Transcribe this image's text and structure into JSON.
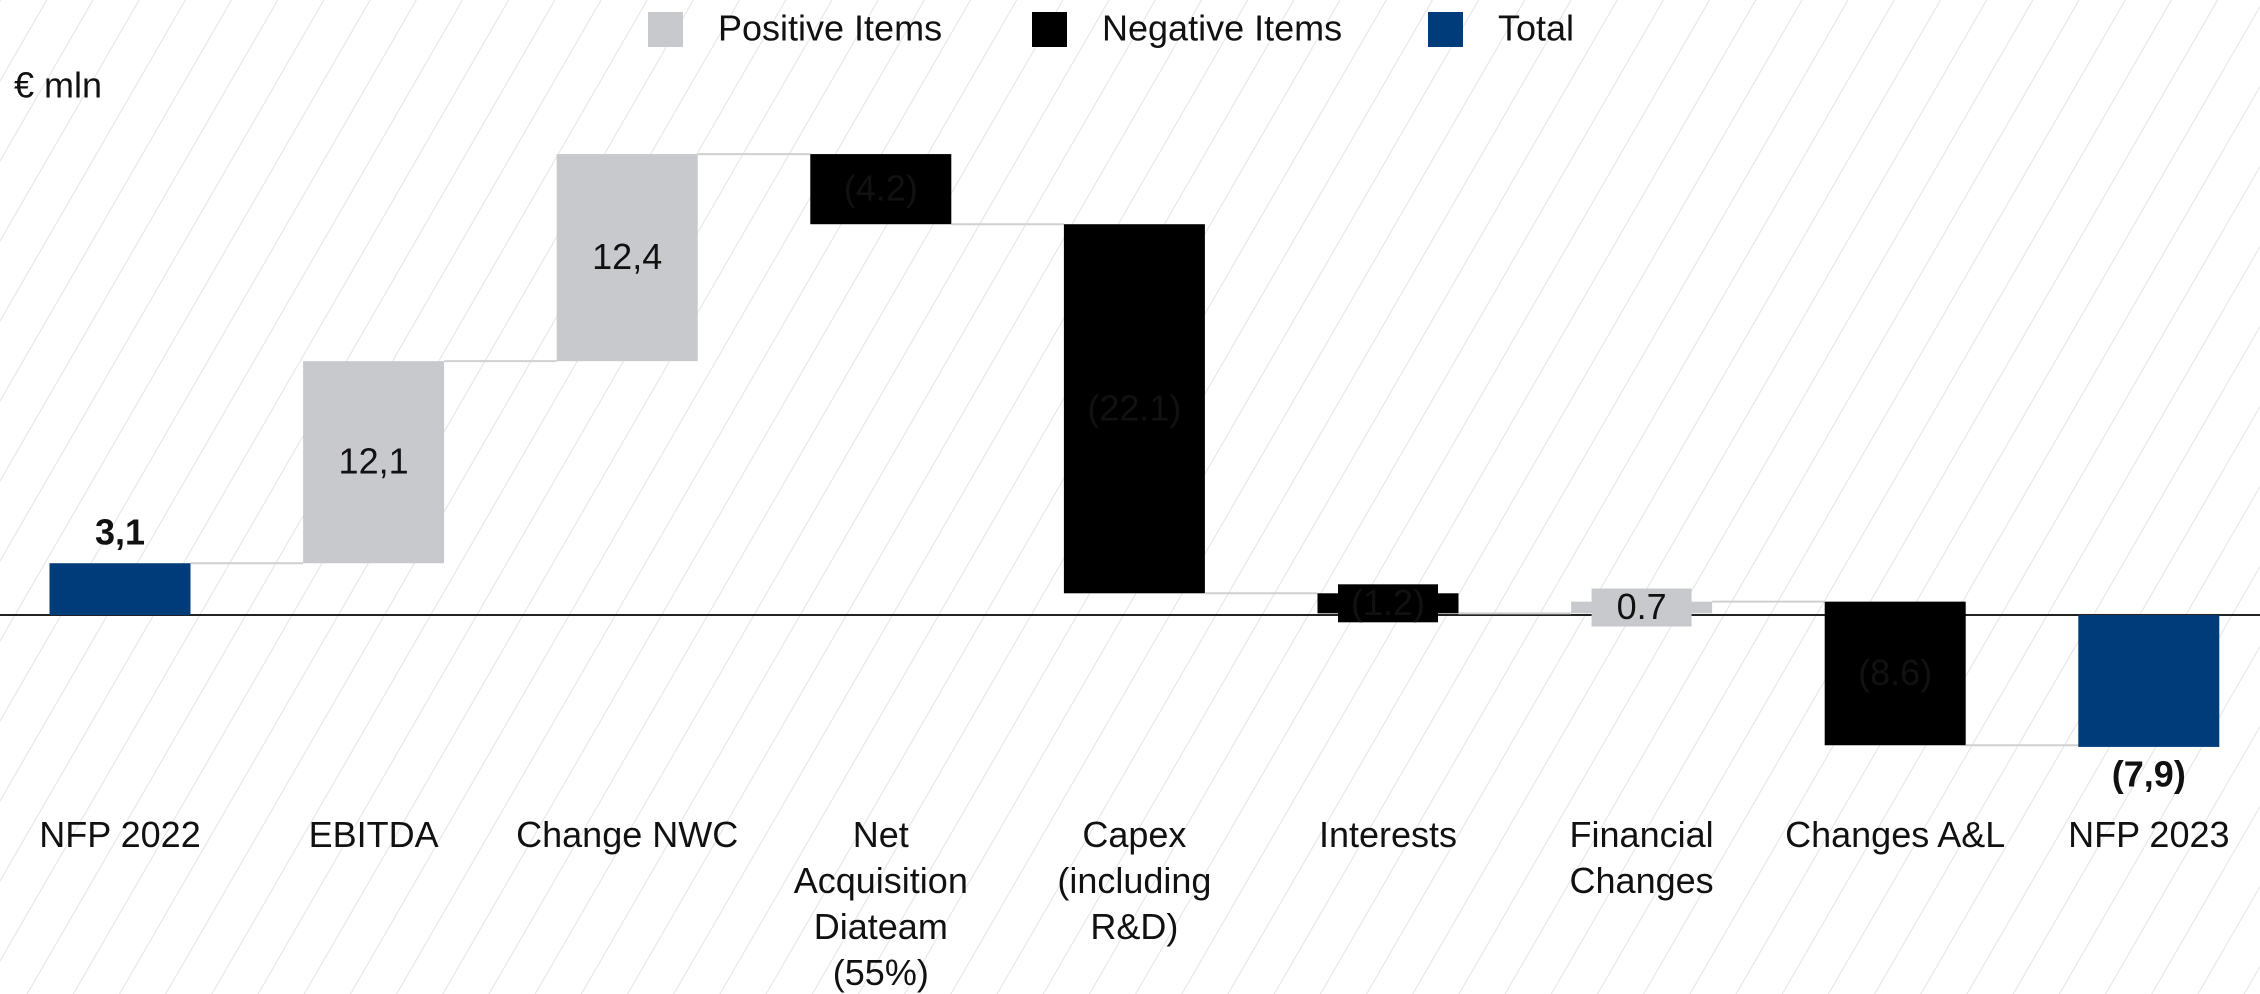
{
  "chart_data": {
    "type": "waterfall",
    "unit_label": "€ mln",
    "categories": [
      [
        "NFP 2022"
      ],
      [
        "EBITDA"
      ],
      [
        "Change NWC"
      ],
      [
        "Net",
        "Acquisition",
        "Diateam",
        "(55%)"
      ],
      [
        "Capex",
        "(including",
        "R&D)"
      ],
      [
        "Interests"
      ],
      [
        "Financial",
        "Changes"
      ],
      [
        "Changes A&L"
      ],
      [
        "NFP 2023"
      ]
    ],
    "values": [
      3.1,
      12.1,
      12.4,
      -4.2,
      -22.1,
      -1.2,
      0.7,
      -8.6,
      -7.9
    ],
    "value_labels": [
      "3,1",
      "12,1",
      "12,4",
      "(4.2)",
      "(22.1)",
      "(1.2)",
      "0.7",
      "(8.6)",
      "(7,9)"
    ],
    "measure": [
      "absolute",
      "relative",
      "relative",
      "relative",
      "relative",
      "relative",
      "relative",
      "relative",
      "absolute"
    ],
    "legend": [
      {
        "name": "Positive Items",
        "color": "#c8c9cc"
      },
      {
        "name": "Negative Items",
        "color": "#000000"
      },
      {
        "name": "Total",
        "color": "#003b7a"
      }
    ],
    "ylim": [
      -10,
      30
    ]
  }
}
